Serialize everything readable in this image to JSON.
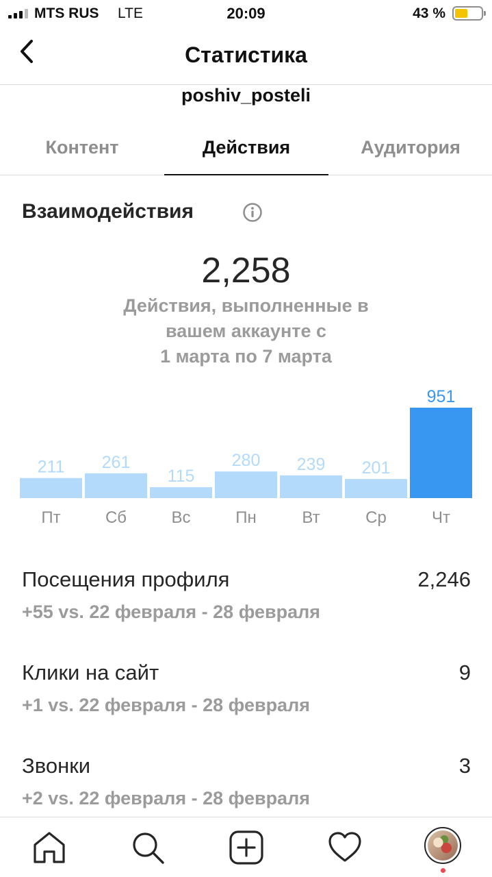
{
  "status_bar": {
    "carrier": "MTS RUS",
    "network": "LTE",
    "time": "20:09",
    "battery_percent": "43 %",
    "battery_level": 0.43
  },
  "header": {
    "back_icon": "chevron-left-icon",
    "title": "Статистика",
    "account": "poshiv_posteli"
  },
  "tabs": [
    {
      "label": "Контент",
      "active": false
    },
    {
      "label": "Действия",
      "active": true
    },
    {
      "label": "Аудитория",
      "active": false
    }
  ],
  "interactions": {
    "title": "Взаимодействия",
    "info_icon": "info-icon",
    "total": "2,258",
    "caption_lines": [
      "Действия, выполненные в",
      "вашем аккаунте с",
      "1 марта по 7 марта"
    ]
  },
  "chart_data": {
    "type": "bar",
    "categories": [
      "Пт",
      "Сб",
      "Вс",
      "Пн",
      "Вт",
      "Ср",
      "Чт"
    ],
    "values": [
      211,
      261,
      115,
      280,
      239,
      201,
      951
    ],
    "highlight_index": 6,
    "colors": {
      "bar": "#b3dafb",
      "bar_highlight": "#3897f0",
      "label": "#b3dafb",
      "label_highlight": "#3897f0",
      "axis_text": "#8e8e8e"
    }
  },
  "metrics": [
    {
      "label": "Посещения профиля",
      "value": "2,246",
      "delta": "+55 vs. 22 февраля - 28 февраля"
    },
    {
      "label": "Клики на сайт",
      "value": "9",
      "delta": "+1 vs. 22 февраля - 28 февраля"
    },
    {
      "label": "Звонки",
      "value": "3",
      "delta": "+2 vs. 22 февраля - 28 февраля"
    }
  ],
  "tab_bar": {
    "items": [
      "home-icon",
      "search-icon",
      "add-post-icon",
      "heart-icon",
      "profile-avatar"
    ]
  }
}
